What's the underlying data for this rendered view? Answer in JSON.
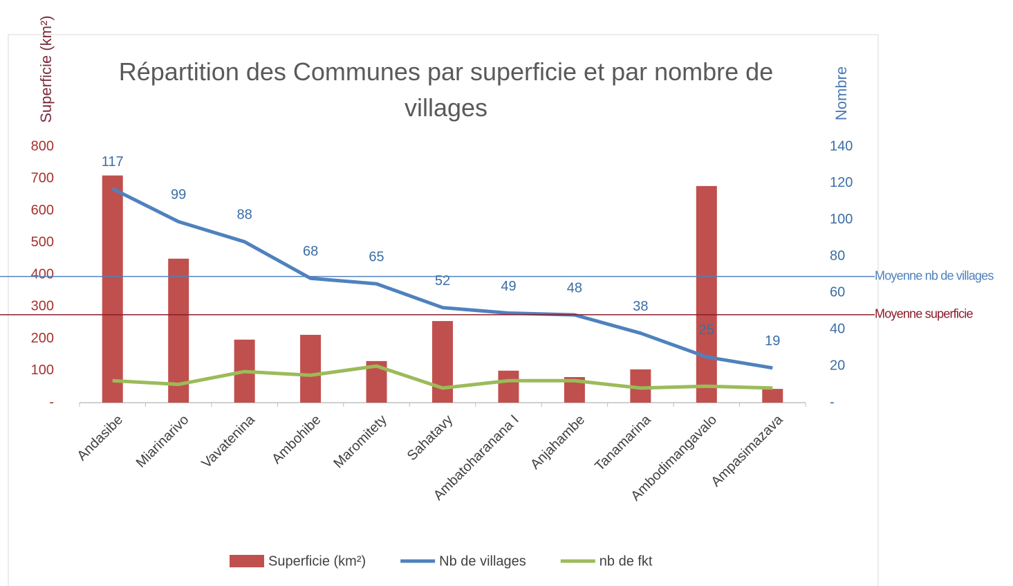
{
  "chart_data": {
    "type": "bar",
    "title": "Répartition des Communes par superficie et par nombre de villages",
    "ylabel": "Superficie (km²)",
    "y2label": "Nombre",
    "categories": [
      "Andasibe",
      "Miarinarivo",
      "Vavatenina",
      "Ambohibe",
      "Maromitety",
      "Sahatavy",
      "Ambatoharanana I",
      "Anjahambe",
      "Tanamarina",
      "Ambodimangavalo",
      "Ampasimazava"
    ],
    "series": [
      {
        "name": "Superficie (km²)",
        "type": "bar",
        "color": "#c0504d",
        "values": [
          710,
          450,
          197,
          212,
          130,
          255,
          100,
          80,
          104,
          677,
          43
        ]
      },
      {
        "name": "Nb de villages",
        "type": "line",
        "axis": "y2",
        "color": "#4f81bd",
        "values": [
          117,
          99,
          88,
          68,
          65,
          52,
          49,
          48,
          38,
          25,
          19
        ],
        "data_labels": true
      },
      {
        "name": "nb de fkt",
        "type": "line",
        "axis": "y2",
        "color": "#9bbb59",
        "values": [
          12,
          10,
          17,
          15,
          20,
          8,
          12,
          12,
          8,
          9,
          8
        ]
      }
    ],
    "reference_lines": [
      {
        "label": "Moyenne nb de villages",
        "value": 69,
        "axis": "y2",
        "color": "#4f81bd"
      },
      {
        "label": "Moyenne superficie",
        "value": 275,
        "axis": "y",
        "color": "#8b1a2b"
      }
    ],
    "ylim": [
      0,
      800
    ],
    "yticks": [
      {
        "value": 0,
        "label": "-"
      },
      100,
      200,
      300,
      400,
      500,
      600,
      700,
      800
    ],
    "y2lim": [
      0,
      140
    ],
    "y2ticks": [
      {
        "value": 0,
        "label": "-"
      },
      20,
      40,
      60,
      80,
      100,
      120,
      140
    ],
    "legend": "bottom"
  }
}
